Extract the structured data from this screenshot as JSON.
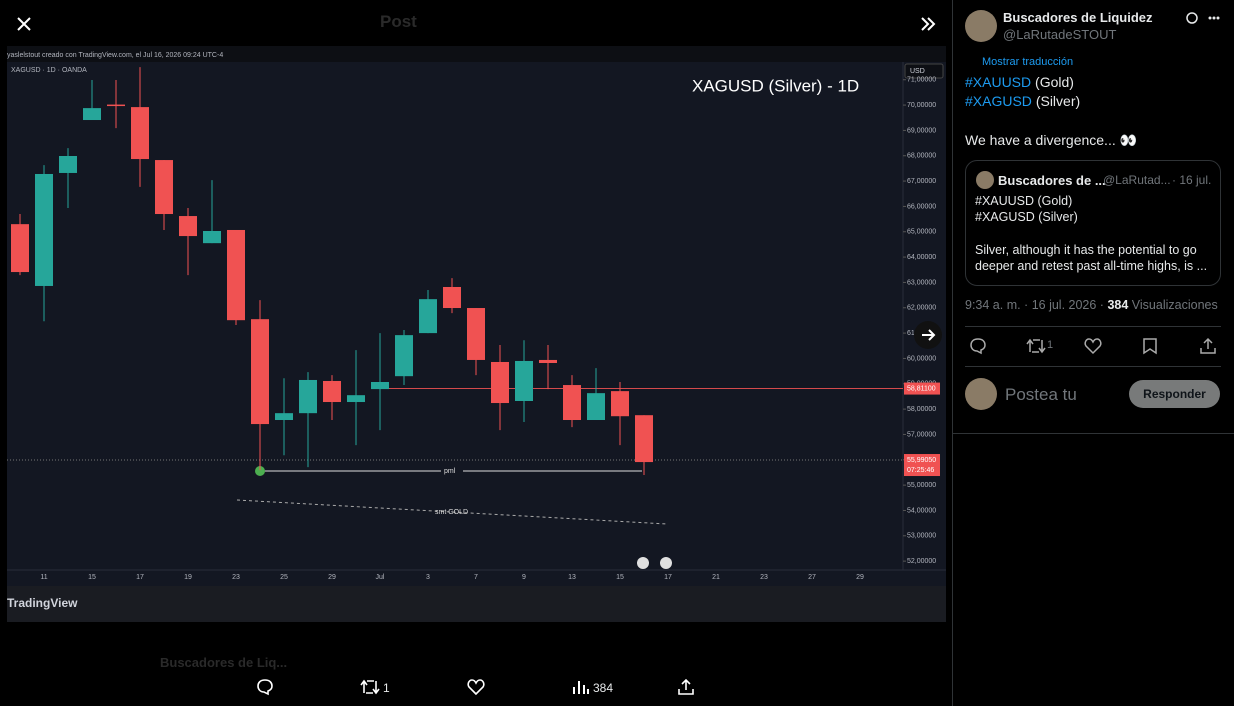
{
  "header": {
    "title": "Post"
  },
  "chart_data": {
    "type": "candlestick",
    "attribution": "yaslelstout creado con TradingView.com, el Jul 16, 2026 09:24 UTC-4",
    "symbol": "XAGUSD · 1D · OANDA",
    "title": "XAGUSD (Silver) - 1D",
    "currency": "USD",
    "up_color": "#26a69a",
    "down_color": "#f05252",
    "open": [
      65.3,
      62.86,
      67.32,
      69.41,
      70.02,
      69.92,
      67.83,
      65.62,
      64.55,
      65.07,
      61.55,
      57.57,
      57.84,
      59.11,
      58.28,
      58.79,
      59.3,
      61.0,
      62.82,
      61.99,
      59.86,
      58.32,
      59.94,
      58.95,
      57.57,
      58.71,
      57.76
    ],
    "high": [
      65.7,
      67.63,
      68.3,
      70.99,
      70.99,
      71.5,
      67.83,
      65.94,
      67.04,
      65.07,
      62.3,
      59.22,
      59.46,
      59.34,
      60.33,
      61.0,
      61.12,
      62.7,
      63.17,
      61.99,
      60.53,
      60.72,
      60.53,
      59.34,
      59.62,
      59.07,
      57.76
    ],
    "low": [
      63.29,
      61.47,
      65.94,
      69.41,
      69.09,
      66.77,
      65.07,
      63.29,
      64.55,
      61.32,
      55.59,
      56.18,
      55.71,
      57.57,
      56.58,
      57.17,
      58.95,
      61.0,
      61.79,
      59.34,
      57.17,
      57.49,
      58.79,
      57.29,
      57.57,
      56.58,
      55.4
    ],
    "close": [
      63.41,
      67.28,
      67.99,
      69.88,
      70.0,
      67.87,
      65.7,
      64.83,
      65.03,
      61.51,
      57.41,
      57.84,
      59.15,
      58.28,
      58.55,
      59.07,
      60.92,
      62.34,
      61.99,
      59.94,
      58.24,
      59.9,
      59.82,
      57.57,
      58.63,
      57.72,
      55.91
    ],
    "ylim": [
      51.65,
      71.7
    ],
    "yticks": [
      {
        "value": 52,
        "label": "52,00000"
      },
      {
        "value": 53,
        "label": "53,00000"
      },
      {
        "value": 54,
        "label": "54,00000"
      },
      {
        "value": 55,
        "label": "55,00000"
      },
      {
        "value": 56,
        "label": "56,00000"
      },
      {
        "value": 57,
        "label": "57,00000"
      },
      {
        "value": 58,
        "label": "58,00000"
      },
      {
        "value": 59,
        "label": "59,00000"
      },
      {
        "value": 60,
        "label": "60,00000"
      },
      {
        "value": 61,
        "label": "61,00000"
      },
      {
        "value": 62,
        "label": "62,00000"
      },
      {
        "value": 63,
        "label": "63,00000"
      },
      {
        "value": 64,
        "label": "64,00000"
      },
      {
        "value": 65,
        "label": "65,00000"
      },
      {
        "value": 66,
        "label": "66,00000"
      },
      {
        "value": 67,
        "label": "67,00000"
      },
      {
        "value": 68,
        "label": "68,00000"
      },
      {
        "value": 69,
        "label": "69,00000"
      },
      {
        "value": 70,
        "label": "70,00000"
      },
      {
        "value": 71,
        "label": "71,00000"
      }
    ],
    "xticks": [
      "11",
      "15",
      "17",
      "19",
      "23",
      "25",
      "29",
      "Jul",
      "3",
      "7",
      "9",
      "13",
      "15",
      "17",
      "21",
      "23",
      "27",
      "29"
    ],
    "price_line": {
      "value": 58.811,
      "label": "58,81100"
    },
    "last_price": {
      "value": 55.9905,
      "label": "55,99050",
      "countdown": "07:25:46"
    },
    "annotations": [
      "pml",
      "smt GOLD"
    ],
    "watermark": "TradingView"
  },
  "post": {
    "author": "Buscadores de Liquidez",
    "handle": "@LaRutadeSTOUT",
    "translate": "Mostrar traducción",
    "lines": [
      {
        "tag": "#XAUUSD",
        "text": "(Gold)"
      },
      {
        "tag": "#XAGUSD",
        "text": "(Silver)"
      }
    ],
    "body": "We have a divergence... 👀",
    "quote": {
      "author": "Buscadores de ...",
      "handle": "@LaRutad...",
      "date": "· 16 jul.",
      "lines": [
        "#XAUUSD (Gold)",
        "#XAGUSD (Silver)"
      ],
      "text": "Silver, although it has the potential to go deeper and retest past all-time highs, is ..."
    },
    "timestamp": "9:34 a. m. · 16 jul. 2026 ·",
    "views": "384",
    "views_label": "Visualizaciones",
    "retweets": "1"
  },
  "reply": {
    "placeholder": "Postea tu",
    "button": "Responder"
  },
  "background_post": {
    "author": "Buscadores de Liq..."
  },
  "bottom_bar": {
    "retweets": "1",
    "views": "384"
  }
}
